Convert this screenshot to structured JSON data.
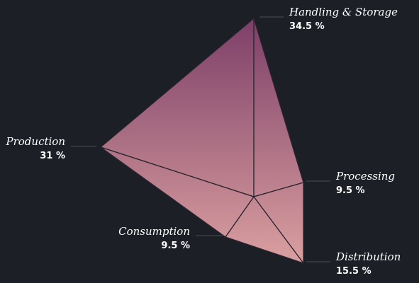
{
  "chart_data": {
    "type": "pie",
    "variant": "polar-pyramid",
    "title": "",
    "categories": [
      "Handling & Storage",
      "Processing",
      "Distribution",
      "Consumption",
      "Production"
    ],
    "values": [
      34.5,
      9.5,
      15.5,
      9.5,
      31
    ],
    "value_labels": [
      "34.5 %",
      "9.5 %",
      "15.5 %",
      "9.5 %",
      "31 %"
    ],
    "unit": "%",
    "legend": "none",
    "colors": {
      "background": "#1c1f26",
      "gradient_top": "#7d3f68",
      "gradient_bottom": "#daa0a0",
      "text": "#ffffff",
      "edges": "#2a2430",
      "leaders": "#4a4d57"
    }
  }
}
